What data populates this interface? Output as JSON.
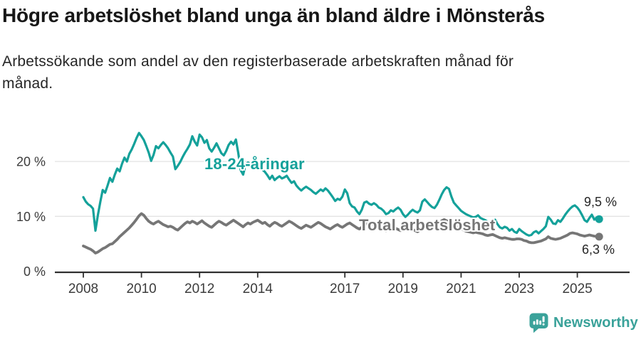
{
  "chart_data": {
    "type": "line",
    "title": "Högre arbetslöshet bland unga än bland äldre i Mönsterås",
    "subtitle_lines": [
      "Arbetssökande som andel av den registerbaserade arbetskraften månad för",
      "månad."
    ],
    "x_unit": "month",
    "x_start": "2008-01",
    "x_end": "2025-10",
    "xticks": [
      2008,
      2010,
      2012,
      2014,
      2017,
      2019,
      2021,
      2023,
      2025
    ],
    "yticks": [
      {
        "value": 0,
        "label": "0 %"
      },
      {
        "value": 10,
        "label": "10 %"
      },
      {
        "value": 20,
        "label": "20 %"
      }
    ],
    "ylim": [
      0,
      26.5
    ],
    "grid": "horizontal",
    "legend": "inline-labels",
    "grid_color": "#e3e3e3",
    "axis_color": "#303030",
    "axis_text_color": "#3c3c3c",
    "series": [
      {
        "id": "youth",
        "name": "18-24-åringar",
        "color": "#14a19a",
        "end_label": "9,5 %",
        "end_value": 9.5,
        "values": [
          13.5,
          12.7,
          12.2,
          11.9,
          11.4,
          7.4,
          10.2,
          12.6,
          14.8,
          14.3,
          15.6,
          17.0,
          16.3,
          17.6,
          18.7,
          18.2,
          19.6,
          20.7,
          20.0,
          21.4,
          22.2,
          23.2,
          24.3,
          25.2,
          24.6,
          23.9,
          22.8,
          21.6,
          20.1,
          21.2,
          22.8,
          22.4,
          23.0,
          23.5,
          23.0,
          22.4,
          21.6,
          20.9,
          18.6,
          19.2,
          19.9,
          20.8,
          21.6,
          22.3,
          23.1,
          24.6,
          23.6,
          22.9,
          24.9,
          24.4,
          23.4,
          23.9,
          22.4,
          21.8,
          22.5,
          23.3,
          22.4,
          21.5,
          21.1,
          21.9,
          23.0,
          23.6,
          23.1,
          24.0,
          21.5,
          18.4,
          17.6,
          19.4,
          19.8,
          19.5,
          19.9,
          19.6,
          19.3,
          18.9,
          18.5,
          18.1,
          17.5,
          16.8,
          17.4,
          16.6,
          17.0,
          17.3,
          16.9,
          17.1,
          17.4,
          16.7,
          16.1,
          16.4,
          15.6,
          15.1,
          14.7,
          15.1,
          15.4,
          15.1,
          14.8,
          14.4,
          14.1,
          14.5,
          14.9,
          14.6,
          15.1,
          14.7,
          14.1,
          13.5,
          12.8,
          13.2,
          13.0,
          13.6,
          14.9,
          14.2,
          12.4,
          11.8,
          11.6,
          10.9,
          10.4,
          11.2,
          12.5,
          12.7,
          12.3,
          12.1,
          12.4,
          12.1,
          11.6,
          11.4,
          11.0,
          10.4,
          10.6,
          11.1,
          10.9,
          11.3,
          11.6,
          11.2,
          10.4,
          9.9,
          10.3,
          10.8,
          11.2,
          10.9,
          10.7,
          11.1,
          12.7,
          13.1,
          12.6,
          12.1,
          11.7,
          11.5,
          12.1,
          13.0,
          14.0,
          14.8,
          15.3,
          15.0,
          13.6,
          12.5,
          12.0,
          11.5,
          11.0,
          10.7,
          10.4,
          10.2,
          10.0,
          9.8,
          9.9,
          10.2,
          9.7,
          9.5,
          9.3,
          9.0,
          8.7,
          9.0,
          9.4,
          8.6,
          8.0,
          7.8,
          8.1,
          7.9,
          7.4,
          7.7,
          7.2,
          7.0,
          7.7,
          7.3,
          7.0,
          6.7,
          6.5,
          6.6,
          7.1,
          7.3,
          6.9,
          7.3,
          7.7,
          8.2,
          9.9,
          9.4,
          8.7,
          8.6,
          9.3,
          9.0,
          9.6,
          10.3,
          10.9,
          11.4,
          11.8,
          12.0,
          11.6,
          11.0,
          10.2,
          9.3,
          9.0,
          9.7,
          10.3,
          9.4,
          9.8,
          9.5
        ]
      },
      {
        "id": "total",
        "name": "Total arbetslöshet",
        "color": "#767676",
        "end_label": "6,3 %",
        "end_value": 6.3,
        "values": [
          4.6,
          4.4,
          4.2,
          4.0,
          3.7,
          3.3,
          3.5,
          3.8,
          4.1,
          4.3,
          4.6,
          4.9,
          5.0,
          5.4,
          5.8,
          6.3,
          6.7,
          7.1,
          7.5,
          7.9,
          8.4,
          8.9,
          9.5,
          10.1,
          10.5,
          10.2,
          9.6,
          9.1,
          8.8,
          8.6,
          8.9,
          9.1,
          8.8,
          8.5,
          8.3,
          8.1,
          8.2,
          8.0,
          7.7,
          7.5,
          7.9,
          8.3,
          8.7,
          9.0,
          8.8,
          9.1,
          8.9,
          8.6,
          8.9,
          9.2,
          8.8,
          8.5,
          8.2,
          8.0,
          8.4,
          8.8,
          9.1,
          8.9,
          8.6,
          8.4,
          8.7,
          9.0,
          9.3,
          9.0,
          8.7,
          8.4,
          8.1,
          8.5,
          8.8,
          8.6,
          8.9,
          9.1,
          9.3,
          9.0,
          8.7,
          8.9,
          8.5,
          8.2,
          8.6,
          8.9,
          8.7,
          8.4,
          8.2,
          8.5,
          8.8,
          9.1,
          8.9,
          8.6,
          8.3,
          8.0,
          7.8,
          8.1,
          8.4,
          8.2,
          8.0,
          8.3,
          8.6,
          8.9,
          8.7,
          8.4,
          8.1,
          7.9,
          7.7,
          8.0,
          8.3,
          8.5,
          8.2,
          8.0,
          8.3,
          8.6,
          8.8,
          8.5,
          8.2,
          7.9,
          7.7,
          8.0,
          8.4,
          8.7,
          8.9,
          8.6,
          8.4,
          8.2,
          8.0,
          7.8,
          7.6,
          7.4,
          7.6,
          7.8,
          8.0,
          7.8,
          7.6,
          7.4,
          7.6,
          7.8,
          8.0,
          7.8,
          7.6,
          7.4,
          7.2,
          7.5,
          7.8,
          8.0,
          7.8,
          7.6,
          7.8,
          8.0,
          8.3,
          8.8,
          9.2,
          9.4,
          9.2,
          9.0,
          8.7,
          8.4,
          8.1,
          7.9,
          7.7,
          7.5,
          7.3,
          7.2,
          7.1,
          7.0,
          7.1,
          7.0,
          6.9,
          6.8,
          6.6,
          6.5,
          6.6,
          6.7,
          6.5,
          6.3,
          6.1,
          6.0,
          6.1,
          6.0,
          5.9,
          5.8,
          5.8,
          5.9,
          5.9,
          5.8,
          5.6,
          5.5,
          5.3,
          5.2,
          5.2,
          5.3,
          5.4,
          5.5,
          5.7,
          5.9,
          6.3,
          6.0,
          5.9,
          5.8,
          5.9,
          6.0,
          6.2,
          6.4,
          6.6,
          6.9,
          7.0,
          6.9,
          6.8,
          6.6,
          6.5,
          6.4,
          6.5,
          6.6,
          6.5,
          6.4,
          6.35,
          6.3
        ]
      }
    ]
  },
  "footer": {
    "brand": "Newsworthy",
    "brand_color": "#3aa29a",
    "brand_icon": "newsworthy-speech-bubble-chart-icon"
  }
}
